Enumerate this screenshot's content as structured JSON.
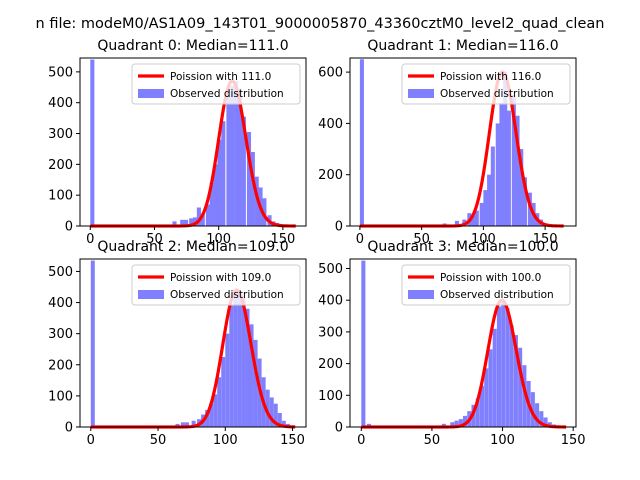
{
  "figure": {
    "suptitle": "n file: modeM0/AS1A09_143T01_9000005870_43360cztM0_level2_quad_clean"
  },
  "colors": {
    "poisson": "#ff0000",
    "observed": "#8080ff",
    "axis": "#000000"
  },
  "chart_data": [
    {
      "type": "bar",
      "title": "Quadrant 0: Median=111.0",
      "xlim": [
        -8,
        168
      ],
      "ylim": [
        0,
        545
      ],
      "xticks": [
        0,
        50,
        100,
        150
      ],
      "yticks": [
        0,
        100,
        200,
        300,
        400,
        500
      ],
      "legend_position": "upper right",
      "series": [
        {
          "name": "Poission with 111.0",
          "kind": "line",
          "lambda": 111.0,
          "x_range": [
            0,
            160
          ]
        },
        {
          "name": "Observed distribution",
          "kind": "histogram",
          "bin_width": 3.2,
          "bins": [
            [
              0,
              540
            ],
            [
              64,
              15
            ],
            [
              70,
              20
            ],
            [
              73,
              20
            ],
            [
              77,
              25
            ],
            [
              80,
              28
            ],
            [
              83,
              60
            ],
            [
              86,
              40
            ],
            [
              90,
              70
            ],
            [
              93,
              140
            ],
            [
              96,
              200
            ],
            [
              99,
              280
            ],
            [
              102,
              340
            ],
            [
              106,
              420
            ],
            [
              109,
              455
            ],
            [
              112,
              470
            ],
            [
              115,
              445
            ],
            [
              118,
              355
            ],
            [
              122,
              305
            ],
            [
              125,
              240
            ],
            [
              128,
              160
            ],
            [
              131,
              125
            ],
            [
              134,
              90
            ],
            [
              138,
              35
            ],
            [
              141,
              15
            ],
            [
              144,
              10
            ],
            [
              147,
              5
            ]
          ]
        }
      ]
    },
    {
      "type": "bar",
      "title": "Quadrant 1: Median=116.0",
      "xlim": [
        -8,
        175
      ],
      "ylim": [
        0,
        655
      ],
      "xticks": [
        0,
        50,
        100,
        150
      ],
      "yticks": [
        0,
        200,
        400,
        600
      ],
      "legend_position": "upper right",
      "series": [
        {
          "name": "Poission with 116.0",
          "kind": "line",
          "lambda": 116.0,
          "x_range": [
            0,
            165
          ]
        },
        {
          "name": "Observed distribution",
          "kind": "histogram",
          "bin_width": 3.3,
          "bins": [
            [
              0,
              650
            ],
            [
              67,
              10
            ],
            [
              77,
              20
            ],
            [
              83,
              25
            ],
            [
              87,
              50
            ],
            [
              90,
              40
            ],
            [
              93,
              60
            ],
            [
              97,
              90
            ],
            [
              100,
              140
            ],
            [
              103,
              200
            ],
            [
              106,
              310
            ],
            [
              110,
              400
            ],
            [
              113,
              480
            ],
            [
              116,
              600
            ],
            [
              119,
              450
            ],
            [
              123,
              510
            ],
            [
              126,
              430
            ],
            [
              129,
              300
            ],
            [
              132,
              190
            ],
            [
              136,
              130
            ],
            [
              139,
              90
            ],
            [
              142,
              50
            ],
            [
              145,
              25
            ],
            [
              149,
              10
            ]
          ]
        }
      ]
    },
    {
      "type": "bar",
      "title": "Quadrant 2: Median=109.0",
      "xlim": [
        -8,
        160
      ],
      "ylim": [
        0,
        540
      ],
      "xticks": [
        0,
        50,
        100,
        150
      ],
      "yticks": [
        0,
        100,
        200,
        300,
        400,
        500
      ],
      "legend_position": "upper right",
      "series": [
        {
          "name": "Poission with 109.0",
          "kind": "line",
          "lambda": 109.0,
          "x_range": [
            0,
            152
          ]
        },
        {
          "name": "Observed distribution",
          "kind": "histogram",
          "bin_width": 3.0,
          "bins": [
            [
              0,
              535
            ],
            [
              63,
              10
            ],
            [
              67,
              15
            ],
            [
              70,
              15
            ],
            [
              75,
              20
            ],
            [
              79,
              25
            ],
            [
              82,
              40
            ],
            [
              85,
              55
            ],
            [
              88,
              75
            ],
            [
              91,
              105
            ],
            [
              94,
              160
            ],
            [
              97,
              225
            ],
            [
              100,
              300
            ],
            [
              103,
              390
            ],
            [
              106,
              430
            ],
            [
              109,
              440
            ],
            [
              112,
              420
            ],
            [
              115,
              380
            ],
            [
              118,
              330
            ],
            [
              121,
              280
            ],
            [
              124,
              220
            ],
            [
              127,
              160
            ],
            [
              130,
              120
            ],
            [
              133,
              95
            ],
            [
              136,
              75
            ],
            [
              139,
              45
            ],
            [
              142,
              20
            ],
            [
              145,
              10
            ]
          ]
        }
      ]
    },
    {
      "type": "bar",
      "title": "Quadrant 3: Median=100.0",
      "xlim": [
        -8,
        152
      ],
      "ylim": [
        0,
        530
      ],
      "xticks": [
        0,
        50,
        100,
        150
      ],
      "yticks": [
        0,
        100,
        200,
        300,
        400,
        500
      ],
      "legend_position": "upper right",
      "series": [
        {
          "name": "Poission with 100.0",
          "kind": "line",
          "lambda": 100.0,
          "x_range": [
            0,
            145
          ]
        },
        {
          "name": "Observed distribution",
          "kind": "histogram",
          "bin_width": 2.9,
          "bins": [
            [
              0,
              525
            ],
            [
              4,
              10
            ],
            [
              57,
              10
            ],
            [
              63,
              15
            ],
            [
              66,
              20
            ],
            [
              69,
              25
            ],
            [
              72,
              35
            ],
            [
              75,
              50
            ],
            [
              78,
              70
            ],
            [
              81,
              90
            ],
            [
              84,
              130
            ],
            [
              87,
              185
            ],
            [
              90,
              245
            ],
            [
              93,
              310
            ],
            [
              96,
              380
            ],
            [
              99,
              400
            ],
            [
              102,
              375
            ],
            [
              105,
              320
            ],
            [
              108,
              290
            ],
            [
              111,
              250
            ],
            [
              114,
              195
            ],
            [
              117,
              145
            ],
            [
              120,
              110
            ],
            [
              123,
              75
            ],
            [
              126,
              50
            ],
            [
              129,
              30
            ],
            [
              132,
              15
            ],
            [
              135,
              8
            ]
          ]
        }
      ]
    }
  ]
}
